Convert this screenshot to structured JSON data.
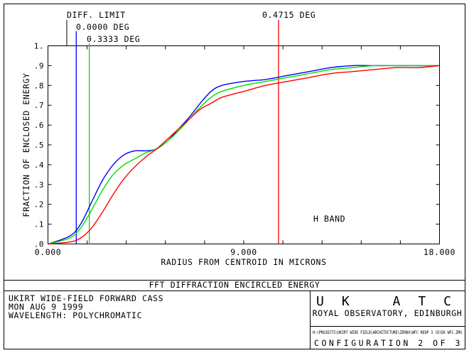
{
  "chart_data": {
    "type": "line",
    "title": "",
    "xlabel": "RADIUS FROM CENTROID IN MICRONS",
    "ylabel": "FRACTION OF ENCLOSED ENERGY",
    "xlim": [
      0,
      18
    ],
    "ylim": [
      0,
      1
    ],
    "x_ticks": [
      "0.000",
      "9.000",
      "18.000"
    ],
    "y_ticks": [
      ".0",
      ".1",
      ".2",
      ".3",
      ".4",
      ".5",
      ".6",
      ".7",
      ".8",
      ".9",
      "1."
    ],
    "grid": false,
    "annotation": "H BAND",
    "markers": [
      {
        "label": "DIFF. LIMIT",
        "x": null,
        "color": "#000000"
      },
      {
        "label": "0.0000 DEG",
        "x": 1.3,
        "color": "#0000ff"
      },
      {
        "label": "0.3333 DEG",
        "x": 1.9,
        "color": "#00dd00"
      },
      {
        "label": "0.4715 DEG",
        "x": 10.6,
        "color": "#ff0000"
      }
    ],
    "series": [
      {
        "name": "0.0000 DEG",
        "color": "#0000ff",
        "x": [
          0,
          1,
          1.5,
          2,
          2.5,
          3,
          3.5,
          4,
          4.5,
          5,
          5.5,
          6,
          6.5,
          7,
          7.5,
          8,
          9,
          10,
          11,
          12,
          13,
          14,
          15,
          16,
          17,
          18
        ],
        "y": [
          0,
          0.04,
          0.1,
          0.21,
          0.32,
          0.4,
          0.45,
          0.47,
          0.47,
          0.48,
          0.52,
          0.58,
          0.64,
          0.71,
          0.77,
          0.8,
          0.82,
          0.83,
          0.85,
          0.87,
          0.89,
          0.9,
          0.9,
          0.9,
          0.9,
          0.9
        ]
      },
      {
        "name": "0.3333 DEG",
        "color": "#00dd00",
        "x": [
          0,
          1,
          1.5,
          2,
          2.5,
          3,
          3.5,
          4,
          4.5,
          5,
          5.5,
          6,
          6.5,
          7,
          7.5,
          8,
          9,
          10,
          11,
          12,
          13,
          14,
          15,
          16,
          17,
          18
        ],
        "y": [
          0,
          0.03,
          0.08,
          0.17,
          0.27,
          0.35,
          0.4,
          0.43,
          0.46,
          0.48,
          0.52,
          0.57,
          0.63,
          0.69,
          0.74,
          0.77,
          0.8,
          0.82,
          0.84,
          0.86,
          0.88,
          0.89,
          0.9,
          0.9,
          0.9,
          0.9
        ]
      },
      {
        "name": "0.4715 DEG",
        "color": "#ff0000",
        "x": [
          0,
          1,
          1.5,
          2,
          2.5,
          3,
          3.5,
          4,
          4.5,
          5,
          5.5,
          6,
          6.5,
          7,
          7.5,
          8,
          9,
          10,
          11,
          12,
          13,
          14,
          15,
          16,
          17,
          18
        ],
        "y": [
          0,
          0.01,
          0.03,
          0.08,
          0.16,
          0.25,
          0.33,
          0.39,
          0.44,
          0.48,
          0.53,
          0.58,
          0.63,
          0.68,
          0.71,
          0.74,
          0.77,
          0.8,
          0.82,
          0.84,
          0.86,
          0.87,
          0.88,
          0.89,
          0.89,
          0.9
        ]
      }
    ]
  },
  "footer": {
    "title": "FFT DIFFRACTION ENCIRCLED ENERGY",
    "info_lines": [
      "UKIRT WIDE-FIELD FORWARD CASS",
      "MON AUG 9 1999",
      "WAVELENGTH: POLYCHROMATIC"
    ],
    "logo_text": "UK ATC",
    "org": "ROYAL OBSERVATORY, EDINBURGH",
    "file_path": "H:\\PROJECTS\\UKIRT WIDE FIELD\\ARCHITECTURE\\ZEMAX\\WFC REOP 3 (D)DX WFC.ZMX",
    "configuration": "CONFIGURATION 2 OF 3"
  }
}
